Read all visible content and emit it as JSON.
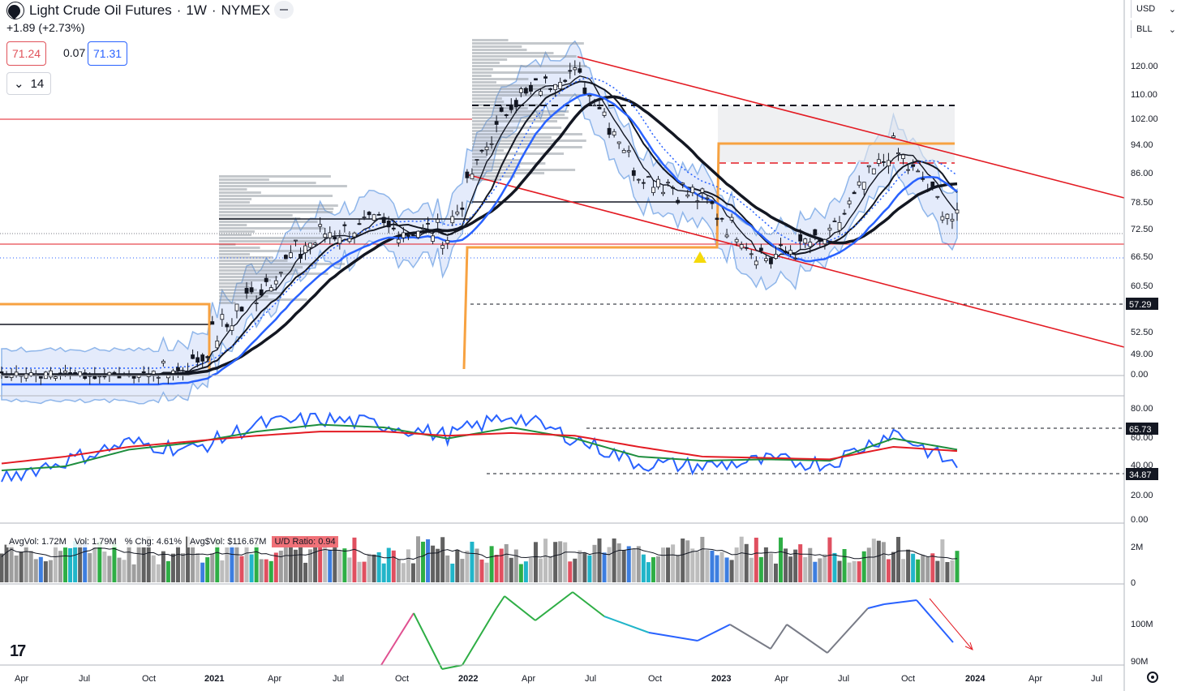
{
  "header": {
    "symbol": "Light Crude Oil Futures",
    "interval": "1W",
    "exchange": "NYMEX",
    "separator": "·",
    "change": "+1.89 (+2.73%)",
    "bid": "71.24",
    "spread": "0.07",
    "ask": "71.31",
    "indicator_length": "14",
    "currency": "USD",
    "unit": "BLL"
  },
  "colors": {
    "blue_line": "#2962ff",
    "red_line": "#e31b23",
    "green_line": "#1e8e3e",
    "orange": "#f7a241",
    "band_fill": "#dbe4f9",
    "band_edge": "#8fb6ea",
    "volume_gray": "#9e9e9e"
  },
  "chart_data": [
    {
      "type": "line",
      "name_hint": "price-pane",
      "x": [
        "2020-03",
        "2020-06",
        "2020-09",
        "2020-12",
        "2021-03",
        "2021-06",
        "2021-09",
        "2021-12",
        "2022-03",
        "2022-06",
        "2022-09",
        "2022-12",
        "2023-03",
        "2023-06",
        "2023-09",
        "2023-11"
      ],
      "series": [
        {
          "values": [
            38,
            36,
            40,
            47,
            60,
            71,
            73,
            71,
            108,
            118,
            86,
            79,
            66,
            70,
            93,
            73
          ]
        }
      ],
      "y_tick_labels": [
        "120.00",
        "110.00",
        "102.00",
        "94.00",
        "86.00",
        "78.50",
        "72.50",
        "66.50",
        "60.50",
        "52.50",
        "49.00",
        "0.00"
      ],
      "price_labels": [
        "57.29"
      ],
      "x_tick_labels": [
        "Apr",
        "Jul",
        "Oct",
        "2021",
        "Apr",
        "Jul",
        "Oct",
        "2022",
        "Apr",
        "Jul",
        "Oct",
        "2023",
        "Apr",
        "Jul",
        "Oct",
        "2024",
        "Apr",
        "Jul"
      ],
      "triangle_marker": "yellow-triangle"
    },
    {
      "type": "line",
      "name_hint": "rsi-pane",
      "x": [
        "2020-03",
        "2020-06",
        "2020-09",
        "2020-12",
        "2021-03",
        "2021-06",
        "2021-09",
        "2021-12",
        "2022-03",
        "2022-06",
        "2022-09",
        "2022-12",
        "2023-03",
        "2023-06",
        "2023-09",
        "2023-11"
      ],
      "series": [
        {
          "values": [
            30,
            42,
            55,
            50,
            68,
            72,
            68,
            60,
            75,
            58,
            40,
            38,
            42,
            40,
            63,
            38
          ]
        },
        {
          "values": [
            35,
            38,
            50,
            55,
            63,
            68,
            66,
            58,
            66,
            58,
            45,
            42,
            43,
            42,
            58,
            50
          ]
        },
        {
          "values": [
            40,
            45,
            52,
            56,
            60,
            63,
            63,
            60,
            62,
            60,
            52,
            45,
            44,
            43,
            52,
            49
          ]
        }
      ],
      "y_tick_labels": [
        "80.00",
        "60.00",
        "40.00",
        "20.00",
        "0.00"
      ],
      "levels": [
        "65.73",
        "34.87"
      ]
    },
    {
      "type": "bar",
      "name_hint": "volume-pane",
      "stats": {
        "avg_vol": "AvgVol: 1.72M",
        "vol": "Vol: 1.79M",
        "pct_chg": "% Chg: 4.61%",
        "avg_dollar_vol": "Avg$Vol: $116.67M",
        "ud_ratio": "U/D Ratio: 0.94"
      },
      "y_tick_labels": [
        "2M",
        "0"
      ]
    },
    {
      "type": "line",
      "name_hint": "flow-pane",
      "y_tick_labels": [
        "100M",
        "90M"
      ]
    }
  ]
}
